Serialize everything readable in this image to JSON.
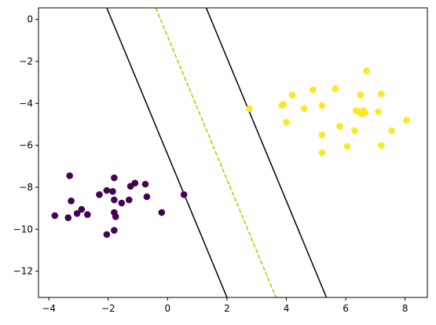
{
  "chart_data": {
    "type": "scatter",
    "title": "",
    "xlabel": "",
    "ylabel": "",
    "xlim": [
      -4.35,
      8.75
    ],
    "ylim": [
      -13.25,
      0.55
    ],
    "xticks": [
      -4,
      -2,
      0,
      2,
      4,
      6,
      8
    ],
    "xtick_labels": [
      "−4",
      "−2",
      "0",
      "2",
      "4",
      "6",
      "8"
    ],
    "yticks": [
      0,
      -2,
      -4,
      -6,
      -8,
      -10,
      -12
    ],
    "ytick_labels": [
      "0",
      "−2",
      "−4",
      "−6",
      "−8",
      "−10",
      "−12"
    ],
    "grid": false,
    "colors": {
      "class_0": "#440154",
      "class_1": "#fde725",
      "margin_line": "#000000",
      "decision_boundary": "#bfbf00"
    },
    "series": [
      {
        "class": 0,
        "points": [
          [
            -3.8,
            -9.35
          ],
          [
            -3.35,
            -9.45
          ],
          [
            -3.3,
            -7.45
          ],
          [
            -3.25,
            -8.65
          ],
          [
            -3.05,
            -9.25
          ],
          [
            -2.9,
            -9.05
          ],
          [
            -2.7,
            -9.3
          ],
          [
            -2.3,
            -8.35
          ],
          [
            -2.05,
            -8.15
          ],
          [
            -2.05,
            -10.25
          ],
          [
            -1.85,
            -8.2
          ],
          [
            -1.8,
            -7.55
          ],
          [
            -1.8,
            -8.6
          ],
          [
            -1.8,
            -9.2
          ],
          [
            -1.75,
            -9.4
          ],
          [
            -1.8,
            -10.05
          ],
          [
            -1.55,
            -8.75
          ],
          [
            -1.3,
            -8.6
          ],
          [
            -1.25,
            -7.95
          ],
          [
            -1.1,
            -7.8
          ],
          [
            -0.75,
            -7.85
          ],
          [
            -0.7,
            -8.45
          ],
          [
            -0.2,
            -9.2
          ],
          [
            0.55,
            -8.35
          ]
        ]
      },
      {
        "class": 1,
        "points": [
          [
            2.75,
            -4.25
          ],
          [
            3.85,
            -4.1
          ],
          [
            3.9,
            -4.05
          ],
          [
            4.0,
            -4.9
          ],
          [
            4.2,
            -3.6
          ],
          [
            4.6,
            -4.25
          ],
          [
            4.9,
            -3.35
          ],
          [
            5.2,
            -4.1
          ],
          [
            5.2,
            -5.5
          ],
          [
            5.2,
            -6.35
          ],
          [
            5.65,
            -3.3
          ],
          [
            5.8,
            -5.1
          ],
          [
            6.05,
            -6.05
          ],
          [
            6.3,
            -5.3
          ],
          [
            6.35,
            -4.35
          ],
          [
            6.45,
            -4.4
          ],
          [
            6.5,
            -3.6
          ],
          [
            6.55,
            -4.5
          ],
          [
            6.6,
            -4.35
          ],
          [
            6.65,
            -4.45
          ],
          [
            6.7,
            -2.45
          ],
          [
            7.1,
            -4.4
          ],
          [
            7.2,
            -3.55
          ],
          [
            7.2,
            -6.0
          ],
          [
            7.55,
            -5.3
          ],
          [
            8.05,
            -4.8
          ]
        ]
      }
    ],
    "lines": [
      {
        "role": "margin",
        "style": "solid",
        "points": [
          [
            -2.05,
            0.55
          ],
          [
            2.0,
            -13.25
          ]
        ]
      },
      {
        "role": "decision-boundary",
        "style": "dashed",
        "points": [
          [
            -0.4,
            0.55
          ],
          [
            3.65,
            -13.25
          ]
        ]
      },
      {
        "role": "margin",
        "style": "solid",
        "points": [
          [
            1.3,
            0.55
          ],
          [
            5.35,
            -13.25
          ]
        ]
      }
    ]
  }
}
